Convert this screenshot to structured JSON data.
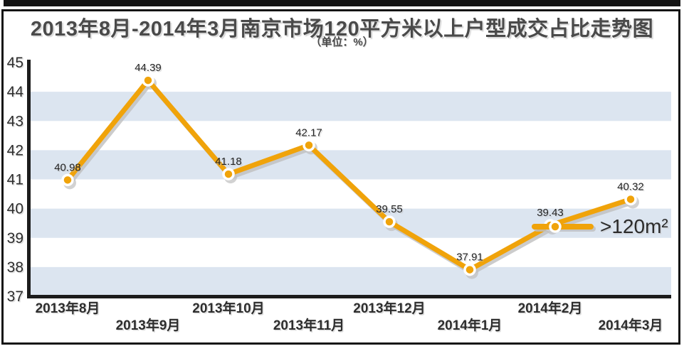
{
  "page": {
    "title": "2013年8月-2014年3月南京市场120平方米以上户型成交占比走势图",
    "subtitle": "（单位：%）"
  },
  "chart_data": {
    "type": "line",
    "title": "2013年8月-2014年3月南京市场120平方米以上户型成交占比走势图",
    "unit_label": "（单位：%）",
    "categories": [
      "2013年8月",
      "2013年9月",
      "2013年10月",
      "2013年11月",
      "2013年12月",
      "2014年1月",
      "2014年2月",
      "2014年3月"
    ],
    "series": [
      {
        "name": ">120m²",
        "values": [
          40.98,
          44.39,
          41.18,
          42.17,
          39.55,
          37.91,
          39.43,
          40.32
        ]
      }
    ],
    "xlabel": "",
    "ylabel": "%",
    "ylim": [
      37,
      45
    ],
    "yticks": [
      45,
      44,
      43,
      42,
      41,
      40,
      39,
      38,
      37
    ],
    "grid": "alternating horizontal bands",
    "legend": {
      "label": ">120m²",
      "position": "middle-right"
    },
    "colors": {
      "line": "#F0A30A",
      "marker_fill": "#F0A30A",
      "marker_ring": "#FFFFFF",
      "shadow": "#BFBFBF",
      "band": "#DCE5F0",
      "axis": "#1C1C1C",
      "label_text": "#222222",
      "title_text": "#4A4A4A"
    }
  }
}
